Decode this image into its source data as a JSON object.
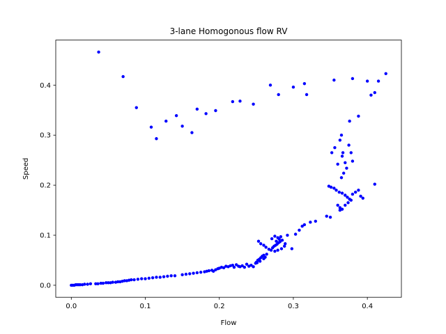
{
  "chart_data": {
    "type": "scatter",
    "title": "3-lane Homogonous flow RV",
    "xlabel": "Flow",
    "ylabel": "Speed",
    "xlim": [
      -0.021,
      0.446
    ],
    "ylim": [
      -0.024,
      0.49
    ],
    "xticks": [
      0.0,
      0.1,
      0.2,
      0.3,
      0.4
    ],
    "yticks": [
      0.0,
      0.1,
      0.2,
      0.3,
      0.4
    ],
    "xtick_labels": [
      "0.0",
      "0.1",
      "0.2",
      "0.3",
      "0.4"
    ],
    "ytick_labels": [
      "0.0",
      "0.1",
      "0.2",
      "0.3",
      "0.4"
    ],
    "grid": false,
    "point_color": "#0000ff",
    "points": [
      [
        0.0,
        0.0
      ],
      [
        0.002,
        0.0
      ],
      [
        0.004,
        0.0
      ],
      [
        0.006,
        0.001
      ],
      [
        0.008,
        0.001
      ],
      [
        0.01,
        0.001
      ],
      [
        0.012,
        0.001
      ],
      [
        0.015,
        0.001
      ],
      [
        0.018,
        0.002
      ],
      [
        0.022,
        0.002
      ],
      [
        0.026,
        0.003
      ],
      [
        0.033,
        0.003
      ],
      [
        0.036,
        0.003
      ],
      [
        0.04,
        0.004
      ],
      [
        0.043,
        0.004
      ],
      [
        0.047,
        0.005
      ],
      [
        0.05,
        0.005
      ],
      [
        0.053,
        0.005
      ],
      [
        0.056,
        0.006
      ],
      [
        0.06,
        0.006
      ],
      [
        0.063,
        0.007
      ],
      [
        0.066,
        0.007
      ],
      [
        0.069,
        0.008
      ],
      [
        0.072,
        0.009
      ],
      [
        0.075,
        0.009
      ],
      [
        0.078,
        0.01
      ],
      [
        0.081,
        0.011
      ],
      [
        0.085,
        0.011
      ],
      [
        0.09,
        0.012
      ],
      [
        0.095,
        0.013
      ],
      [
        0.1,
        0.013
      ],
      [
        0.105,
        0.014
      ],
      [
        0.11,
        0.015
      ],
      [
        0.115,
        0.016
      ],
      [
        0.12,
        0.016
      ],
      [
        0.125,
        0.017
      ],
      [
        0.13,
        0.018
      ],
      [
        0.135,
        0.019
      ],
      [
        0.14,
        0.019
      ],
      [
        0.15,
        0.021
      ],
      [
        0.155,
        0.022
      ],
      [
        0.16,
        0.023
      ],
      [
        0.165,
        0.024
      ],
      [
        0.17,
        0.025
      ],
      [
        0.175,
        0.026
      ],
      [
        0.18,
        0.027
      ],
      [
        0.183,
        0.028
      ],
      [
        0.186,
        0.029
      ],
      [
        0.19,
        0.03
      ],
      [
        0.192,
        0.028
      ],
      [
        0.195,
        0.031
      ],
      [
        0.198,
        0.033
      ],
      [
        0.2,
        0.034
      ],
      [
        0.203,
        0.036
      ],
      [
        0.206,
        0.035
      ],
      [
        0.209,
        0.038
      ],
      [
        0.212,
        0.037
      ],
      [
        0.215,
        0.039
      ],
      [
        0.218,
        0.04
      ],
      [
        0.22,
        0.036
      ],
      [
        0.223,
        0.041
      ],
      [
        0.226,
        0.038
      ],
      [
        0.228,
        0.037
      ],
      [
        0.231,
        0.039
      ],
      [
        0.234,
        0.036
      ],
      [
        0.237,
        0.042
      ],
      [
        0.24,
        0.038
      ],
      [
        0.243,
        0.04
      ],
      [
        0.246,
        0.037
      ],
      [
        0.249,
        0.044
      ],
      [
        0.25,
        0.046
      ],
      [
        0.252,
        0.05
      ],
      [
        0.254,
        0.052
      ],
      [
        0.256,
        0.055
      ],
      [
        0.258,
        0.058
      ],
      [
        0.26,
        0.06
      ],
      [
        0.262,
        0.056
      ],
      [
        0.264,
        0.062
      ],
      [
        0.26,
        0.053
      ],
      [
        0.255,
        0.048
      ],
      [
        0.251,
        0.045
      ],
      [
        0.253,
        0.088
      ],
      [
        0.256,
        0.083
      ],
      [
        0.26,
        0.08
      ],
      [
        0.263,
        0.076
      ],
      [
        0.267,
        0.072
      ],
      [
        0.27,
        0.07
      ],
      [
        0.272,
        0.075
      ],
      [
        0.274,
        0.078
      ],
      [
        0.276,
        0.08
      ],
      [
        0.278,
        0.082
      ],
      [
        0.28,
        0.085
      ],
      [
        0.282,
        0.087
      ],
      [
        0.285,
        0.09
      ],
      [
        0.271,
        0.093
      ],
      [
        0.275,
        0.098
      ],
      [
        0.279,
        0.095
      ],
      [
        0.283,
        0.097
      ],
      [
        0.275,
        0.068
      ],
      [
        0.279,
        0.07
      ],
      [
        0.284,
        0.073
      ],
      [
        0.288,
        0.078
      ],
      [
        0.277,
        0.088
      ],
      [
        0.281,
        0.092
      ],
      [
        0.289,
        0.083
      ],
      [
        0.292,
        0.1
      ],
      [
        0.298,
        0.073
      ],
      [
        0.303,
        0.102
      ],
      [
        0.308,
        0.11
      ],
      [
        0.312,
        0.118
      ],
      [
        0.315,
        0.121
      ],
      [
        0.323,
        0.126
      ],
      [
        0.33,
        0.128
      ],
      [
        0.345,
        0.138
      ],
      [
        0.35,
        0.136
      ],
      [
        0.352,
        0.265
      ],
      [
        0.356,
        0.275
      ],
      [
        0.36,
        0.242
      ],
      [
        0.363,
        0.29
      ],
      [
        0.365,
        0.3
      ],
      [
        0.366,
        0.258
      ],
      [
        0.367,
        0.265
      ],
      [
        0.368,
        0.224
      ],
      [
        0.37,
        0.245
      ],
      [
        0.372,
        0.234
      ],
      [
        0.375,
        0.28
      ],
      [
        0.378,
        0.265
      ],
      [
        0.38,
        0.248
      ],
      [
        0.365,
        0.215
      ],
      [
        0.348,
        0.198
      ],
      [
        0.351,
        0.196
      ],
      [
        0.355,
        0.194
      ],
      [
        0.358,
        0.19
      ],
      [
        0.362,
        0.186
      ],
      [
        0.366,
        0.184
      ],
      [
        0.37,
        0.18
      ],
      [
        0.373,
        0.176
      ],
      [
        0.376,
        0.172
      ],
      [
        0.38,
        0.182
      ],
      [
        0.384,
        0.186
      ],
      [
        0.388,
        0.19
      ],
      [
        0.391,
        0.178
      ],
      [
        0.394,
        0.174
      ],
      [
        0.36,
        0.16
      ],
      [
        0.363,
        0.155
      ],
      [
        0.366,
        0.152
      ],
      [
        0.37,
        0.16
      ],
      [
        0.374,
        0.165
      ],
      [
        0.378,
        0.17
      ],
      [
        0.363,
        0.15
      ],
      [
        0.41,
        0.202
      ],
      [
        0.037,
        0.466
      ],
      [
        0.07,
        0.417
      ],
      [
        0.088,
        0.355
      ],
      [
        0.108,
        0.316
      ],
      [
        0.115,
        0.293
      ],
      [
        0.128,
        0.328
      ],
      [
        0.142,
        0.339
      ],
      [
        0.15,
        0.318
      ],
      [
        0.163,
        0.305
      ],
      [
        0.17,
        0.352
      ],
      [
        0.182,
        0.343
      ],
      [
        0.195,
        0.349
      ],
      [
        0.218,
        0.367
      ],
      [
        0.228,
        0.368
      ],
      [
        0.246,
        0.362
      ],
      [
        0.269,
        0.4
      ],
      [
        0.28,
        0.381
      ],
      [
        0.3,
        0.396
      ],
      [
        0.315,
        0.403
      ],
      [
        0.318,
        0.381
      ],
      [
        0.355,
        0.41
      ],
      [
        0.376,
        0.328
      ],
      [
        0.38,
        0.413
      ],
      [
        0.388,
        0.338
      ],
      [
        0.4,
        0.408
      ],
      [
        0.405,
        0.38
      ],
      [
        0.41,
        0.385
      ],
      [
        0.415,
        0.408
      ],
      [
        0.425,
        0.423
      ]
    ]
  }
}
